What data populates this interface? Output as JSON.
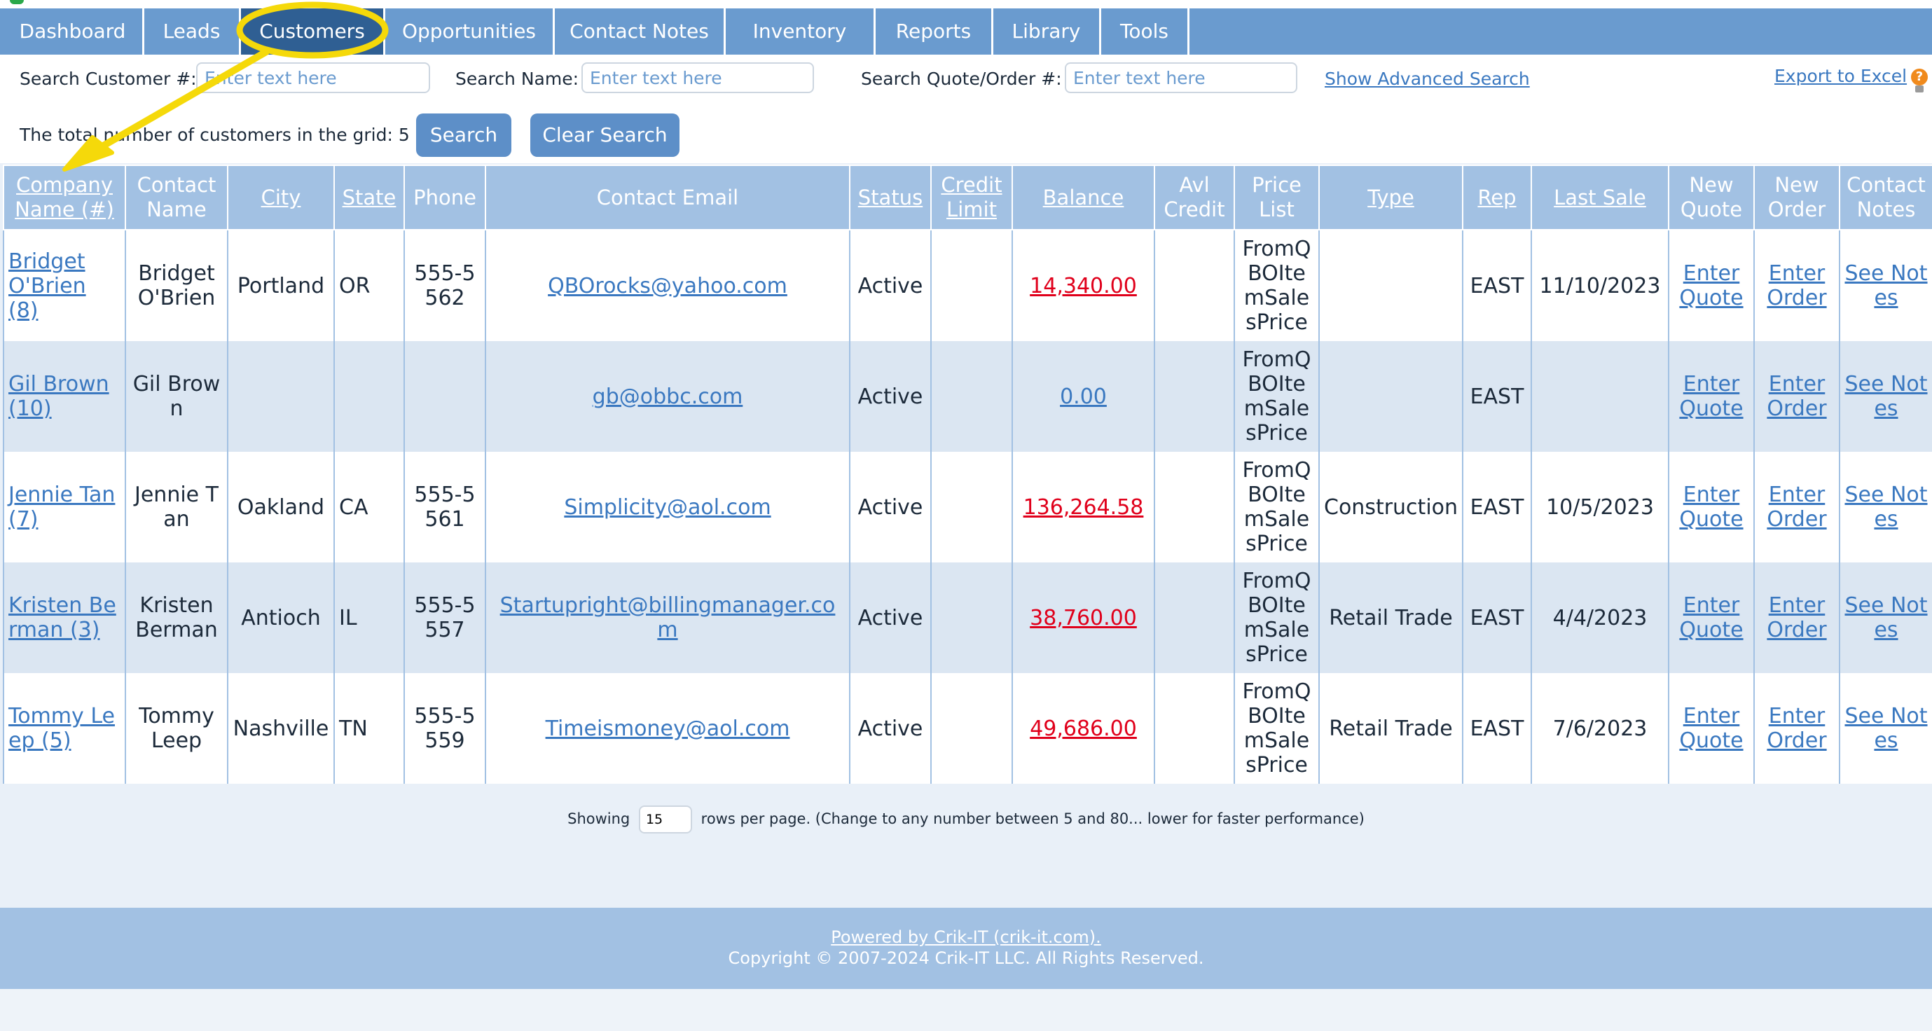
{
  "nav": {
    "tabs": [
      {
        "label": "Dashboard",
        "active": false
      },
      {
        "label": "Leads",
        "active": false
      },
      {
        "label": "Customers",
        "active": true
      },
      {
        "label": "Opportunities",
        "active": false
      },
      {
        "label": "Contact Notes",
        "active": false
      },
      {
        "label": "Inventory",
        "active": false
      },
      {
        "label": "Reports",
        "active": false
      },
      {
        "label": "Library",
        "active": false
      },
      {
        "label": "Tools",
        "active": false
      }
    ]
  },
  "search": {
    "customer_label": "Search Customer #:",
    "customer_placeholder": "Enter text here",
    "name_label": "Search Name:",
    "name_placeholder": "Enter text here",
    "quote_label": "Search Quote/Order #:",
    "quote_placeholder": "Enter text here",
    "advanced_link": "Show Advanced Search",
    "export_link": "Export to Excel",
    "total_text": "The total number of customers in the grid: 5",
    "search_button": "Search",
    "clear_button": "Clear Search"
  },
  "grid": {
    "headers": [
      {
        "label": "Company Name (#)",
        "sortable": true
      },
      {
        "label": "Contact Name",
        "sortable": false
      },
      {
        "label": "City",
        "sortable": true
      },
      {
        "label": "State",
        "sortable": true
      },
      {
        "label": "Phone",
        "sortable": false
      },
      {
        "label": "Contact Email",
        "sortable": false
      },
      {
        "label": "Status",
        "sortable": true
      },
      {
        "label": "Credit Limit",
        "sortable": true
      },
      {
        "label": "Balance",
        "sortable": true
      },
      {
        "label": "Avl Credit",
        "sortable": false
      },
      {
        "label": "Price List",
        "sortable": false
      },
      {
        "label": "Type",
        "sortable": true
      },
      {
        "label": "Rep",
        "sortable": true
      },
      {
        "label": "Last Sale",
        "sortable": true
      },
      {
        "label": "New Quote",
        "sortable": false
      },
      {
        "label": "New Order",
        "sortable": false
      },
      {
        "label": "Contact Notes",
        "sortable": false
      }
    ],
    "rows": [
      {
        "company": "Bridget O'Brien (8)",
        "contact": "Bridget O'Brien",
        "city": "Portland",
        "state": "OR",
        "phone": "555-5562",
        "email": "QBOrocks@yahoo.com",
        "status": "Active",
        "credit_limit": "",
        "balance": "14,340.00",
        "balance_negative": true,
        "avl_credit": "",
        "price_list": "FromQBOItemSalesPrice",
        "type": "",
        "rep": "EAST",
        "last_sale": "11/10/2023",
        "quote": "Enter Quote",
        "order": "Enter Order",
        "notes": "See Notes"
      },
      {
        "company": "Gil Brown (10)",
        "contact": "Gil Brown",
        "city": "",
        "state": "",
        "phone": "",
        "email": "gb@obbc.com",
        "status": "Active",
        "credit_limit": "",
        "balance": "0.00",
        "balance_negative": false,
        "avl_credit": "",
        "price_list": "FromQBOItemSalesPrice",
        "type": "",
        "rep": "EAST",
        "last_sale": "",
        "quote": "Enter Quote",
        "order": "Enter Order",
        "notes": "See Notes"
      },
      {
        "company": "Jennie Tan (7)",
        "contact": "Jennie Tan",
        "city": "Oakland",
        "state": "CA",
        "phone": "555-5561",
        "email": "Simplicity@aol.com",
        "status": "Active",
        "credit_limit": "",
        "balance": "136,264.58",
        "balance_negative": true,
        "avl_credit": "",
        "price_list": "FromQBOItemSalesPrice",
        "type": "Construction",
        "rep": "EAST",
        "last_sale": "10/5/2023",
        "quote": "Enter Quote",
        "order": "Enter Order",
        "notes": "See Notes"
      },
      {
        "company": "Kristen Berman (3)",
        "contact": "Kristen Berman",
        "city": "Antioch",
        "state": "IL",
        "phone": "555-5557",
        "email": "Startupright@billingmanager.com",
        "status": "Active",
        "credit_limit": "",
        "balance": "38,760.00",
        "balance_negative": true,
        "avl_credit": "",
        "price_list": "FromQBOItemSalesPrice",
        "type": "Retail Trade",
        "rep": "EAST",
        "last_sale": "4/4/2023",
        "quote": "Enter Quote",
        "order": "Enter Order",
        "notes": "See Notes"
      },
      {
        "company": "Tommy Leep (5)",
        "contact": "Tommy Leep",
        "city": "Nashville",
        "state": "TN",
        "phone": "555-5559",
        "email": "Timeismoney@aol.com",
        "status": "Active",
        "credit_limit": "",
        "balance": "49,686.00",
        "balance_negative": true,
        "avl_credit": "",
        "price_list": "FromQBOItemSalesPrice",
        "type": "Retail Trade",
        "rep": "EAST",
        "last_sale": "7/6/2023",
        "quote": "Enter Quote",
        "order": "Enter Order",
        "notes": "See Notes"
      }
    ]
  },
  "pager": {
    "prefix": "Showing",
    "rows_per_page": "15",
    "suffix": "rows per page. (Change to any number between 5 and 80... lower for faster performance)"
  },
  "footer": {
    "powered": "Powered by Crik-IT (crik-it.com).",
    "copyright": "Copyright © 2007-2024 Crik-IT LLC. All Rights Reserved."
  },
  "colors": {
    "nav": "#6a9bcf",
    "nav_active": "#2f5f93",
    "header": "#a2c1e3",
    "row_alt": "#dbe6f2",
    "negative": "#e0001b",
    "annotation": "#f5d90a"
  },
  "icons": [
    "lightbulb-help-icon",
    "annotation-arrow-icon"
  ]
}
